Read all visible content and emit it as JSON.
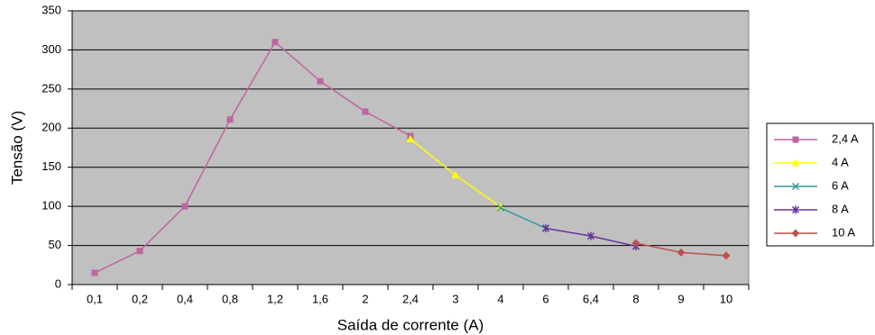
{
  "chart_data": {
    "type": "line",
    "y_label": "Tensão (V)",
    "x_label": "Saída de corrente (A)",
    "categories": [
      "0,1",
      "0,2",
      "0,4",
      "0,8",
      "1,2",
      "1,6",
      "2",
      "2,4",
      "3",
      "4",
      "6",
      "6,4",
      "8",
      "9",
      "10"
    ],
    "series": [
      {
        "name": "2,4 A",
        "color": "#c064a0",
        "marker": "square",
        "values": [
          15,
          43,
          100,
          211,
          310,
          260,
          221,
          190,
          null,
          null,
          null,
          null,
          null,
          null,
          null
        ]
      },
      {
        "name": "4 A",
        "color": "#ffff00",
        "marker": "triangle",
        "values": [
          null,
          null,
          null,
          null,
          null,
          null,
          null,
          186,
          140,
          99,
          null,
          null,
          null,
          null,
          null
        ]
      },
      {
        "name": "6 A",
        "color": "#339999",
        "marker": "x",
        "values": [
          null,
          null,
          null,
          null,
          null,
          null,
          null,
          null,
          null,
          98,
          72,
          null,
          null,
          null,
          null
        ]
      },
      {
        "name": "8 A",
        "color": "#663399",
        "marker": "star",
        "values": [
          null,
          null,
          null,
          null,
          null,
          null,
          null,
          null,
          null,
          null,
          72,
          62,
          49,
          null,
          null
        ]
      },
      {
        "name": "10 A",
        "color": "#c0504d",
        "marker": "diamond",
        "values": [
          null,
          null,
          null,
          null,
          null,
          null,
          null,
          null,
          null,
          null,
          null,
          null,
          53,
          41,
          37
        ]
      }
    ],
    "ylim": [
      0,
      350
    ],
    "yticks": [
      0,
      50,
      100,
      150,
      200,
      250,
      300,
      350
    ],
    "grid": true,
    "legend": "right"
  }
}
